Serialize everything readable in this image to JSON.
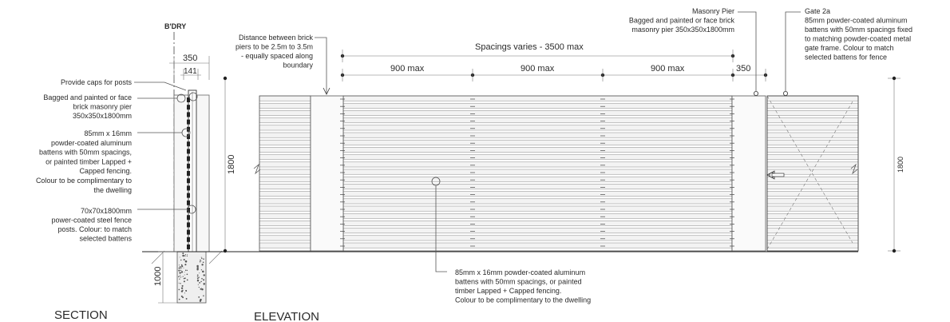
{
  "section": {
    "title": "SECTION",
    "bdry": "B'DRY",
    "dim_350": "350",
    "dim_141": "141",
    "dim_1000": "1000",
    "notes": [
      [
        "Provide caps for posts"
      ],
      [
        "Bagged and painted or face",
        "brick masonry pier",
        "350x350x1800mm"
      ],
      [
        "85mm x 16mm",
        "powder-coated aluminum",
        "battens with 50mm spacings,",
        "or painted timber Lapped +",
        "Capped fencing.",
        "Colour to be complimentary to",
        "the dwelling"
      ],
      [
        "70x70x1800mm",
        "power-coated steel fence",
        "posts. Colour: to match",
        "selected battens"
      ]
    ]
  },
  "elevation": {
    "title": "ELEVATION",
    "dim_height_left": "1800",
    "dim_height_right": "1800",
    "spacing_label": "Spacings varies - 3500 max",
    "bay_labels": [
      "900 max",
      "900 max",
      "900 max"
    ],
    "pier_width_label": "350",
    "note_piers": [
      "Distance between brick",
      "piers to be 2.5m to 3.5m",
      "- equally spaced along",
      "boundary"
    ],
    "note_masonry": [
      "Masonry Pier",
      "Bagged and painted or face brick",
      "masonry pier 350x350x1800mm"
    ],
    "note_gate": [
      "Gate 2a",
      "85mm powder-coated aluminum",
      "battens with 50mm spacings fixed",
      "to matching powder-coated metal",
      "gate frame. Colour to match",
      "selected battens for fence"
    ],
    "note_battens": [
      "85mm x 16mm powder-coated aluminum",
      "battens with 50mm spacings, or painted",
      "timber Lapped + Capped fencing.",
      "Colour to be complimentary to the dwelling"
    ]
  }
}
